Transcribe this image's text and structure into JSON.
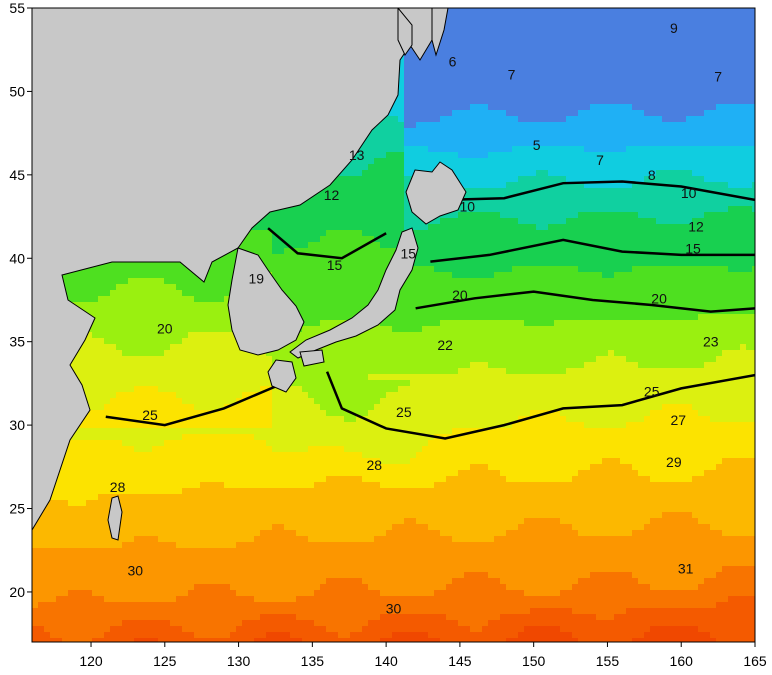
{
  "map": {
    "kind": "sea-surface-temperature-contour",
    "lon_range": [
      116,
      165
    ],
    "lat_range": [
      17,
      55
    ],
    "x_ticks": [
      "120",
      "125",
      "130",
      "135",
      "140",
      "145",
      "150",
      "155",
      "160",
      "165"
    ],
    "y_ticks": [
      "55",
      "50",
      "45",
      "40",
      "35",
      "30",
      "25",
      "20"
    ],
    "contour_labels": [
      "6",
      "7",
      "9",
      "7",
      "5",
      "7",
      "8",
      "13",
      "12",
      "10",
      "10",
      "15",
      "15",
      "12",
      "15",
      "19",
      "20",
      "20",
      "20",
      "22",
      "23",
      "25",
      "25",
      "25",
      "27",
      "28",
      "28",
      "29",
      "30",
      "31",
      "30"
    ],
    "bands": [
      {
        "t": 5,
        "color": "#4a7fe0"
      },
      {
        "t": 7,
        "color": "#1fb0f5"
      },
      {
        "t": 9,
        "color": "#10cde0"
      },
      {
        "t": 11,
        "color": "#10d0a0"
      },
      {
        "t": 13,
        "color": "#18d050"
      },
      {
        "t": 16,
        "color": "#4ee020"
      },
      {
        "t": 19,
        "color": "#9af010"
      },
      {
        "t": 21,
        "color": "#dcf010"
      },
      {
        "t": 23,
        "color": "#fce300"
      },
      {
        "t": 25,
        "color": "#fcb800"
      },
      {
        "t": 27,
        "color": "#fc9600"
      },
      {
        "t": 29,
        "color": "#f87400"
      },
      {
        "t": 30,
        "color": "#f45a00"
      },
      {
        "t": 31,
        "color": "#f04800"
      }
    ],
    "land_color": "#c8c8c8"
  }
}
